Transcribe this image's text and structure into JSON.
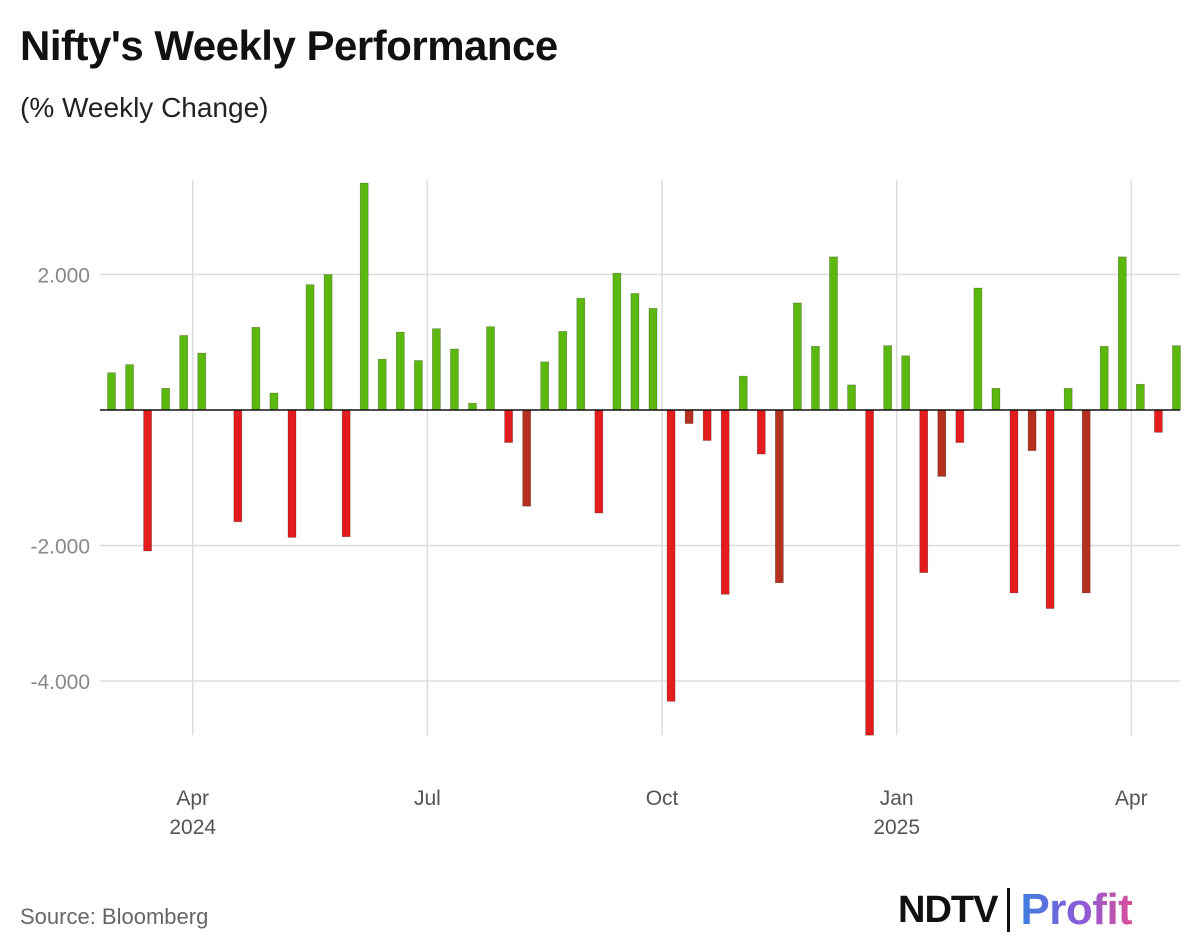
{
  "header": {
    "title": "Nifty's Weekly Performance",
    "subtitle": "(% Weekly Change)"
  },
  "footer": {
    "source": "Source: Bloomberg",
    "logo_left": "NDTV",
    "logo_right": "Profit"
  },
  "colors": {
    "positive": "#5cb80f",
    "negative_red": "#e31d1d",
    "negative_dark": "#b5301f",
    "grid": "#dddddd",
    "zero_line": "#111111",
    "tick_label": "#888888",
    "axis_label": "#555555"
  },
  "chart_data": {
    "type": "bar",
    "title": "Nifty's Weekly Performance",
    "subtitle": "(% Weekly Change)",
    "ylim": [
      -4.8,
      3.4
    ],
    "yticks": [
      {
        "value": 2.0,
        "label": "2.000"
      },
      {
        "value": -2.0,
        "label": "-2.000"
      },
      {
        "value": -4.0,
        "label": "-4.000"
      }
    ],
    "xticks": [
      {
        "label": "Apr",
        "sub": "2024",
        "week": 4.5
      },
      {
        "label": "Jul",
        "sub": "",
        "week": 17.5
      },
      {
        "label": "Oct",
        "sub": "",
        "week": 30.5
      },
      {
        "label": "Jan",
        "sub": "2025",
        "week": 43.5
      },
      {
        "label": "Apr",
        "sub": "",
        "week": 56.5
      }
    ],
    "grid": true,
    "values": [
      0.55,
      0.67,
      -2.08,
      0.32,
      1.1,
      0.84,
      null,
      -1.65,
      1.22,
      0.25,
      -1.88,
      1.85,
      2.0,
      -1.87,
      3.35,
      0.75,
      1.15,
      0.73,
      1.2,
      0.9,
      0.1,
      1.23,
      -0.48,
      -1.42,
      0.71,
      1.16,
      1.65,
      -1.52,
      2.02,
      1.72,
      1.5,
      -4.3,
      -0.2,
      -0.45,
      -2.72,
      0.5,
      -0.65,
      -2.55,
      1.58,
      0.94,
      2.26,
      0.37,
      -4.8,
      0.95,
      0.8,
      -2.4,
      -0.98,
      -0.48,
      1.8,
      0.32,
      -2.7,
      -0.6,
      -2.93,
      0.32,
      -2.7,
      0.94,
      2.26,
      0.38,
      -0.33,
      0.95
    ],
    "dark_negative_indices": [
      23,
      32,
      37,
      46,
      51,
      54
    ]
  }
}
